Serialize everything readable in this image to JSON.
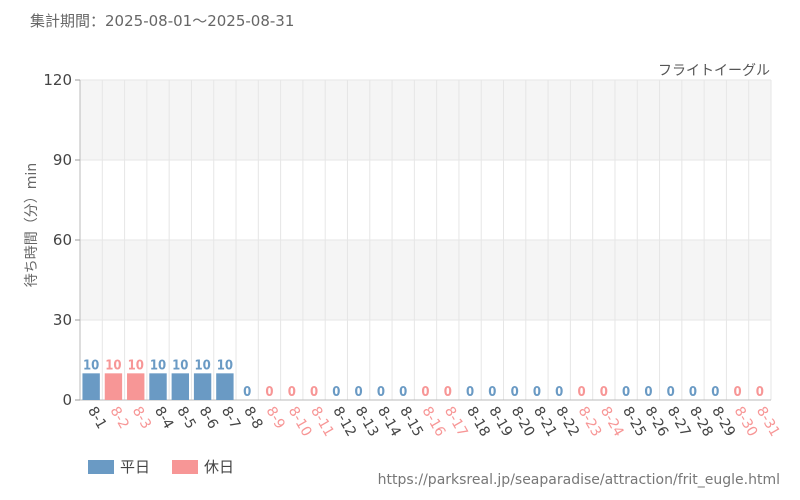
{
  "header": {
    "period_label": "集計期間：",
    "period_range": "2025-08-01～2025-08-31"
  },
  "colors": {
    "weekday": "#6a9ac4",
    "holiday": "#f79696",
    "grid": "#e6e6e6",
    "band": "#f5f5f5"
  },
  "legend": {
    "weekday_label": "平日",
    "holiday_label": "休日"
  },
  "source_url": "https://parksreal.jp/seaparadise/attraction/frit_eugle.html",
  "chart_data": {
    "type": "bar",
    "title": "フライトイーグル",
    "ylabel": "待ち時間（分）min",
    "xlabel": "",
    "ylim": [
      0,
      120
    ],
    "yticks": [
      0,
      30,
      60,
      90,
      120
    ],
    "grid": true,
    "categories": [
      "8-1",
      "8-2",
      "8-3",
      "8-4",
      "8-5",
      "8-6",
      "8-7",
      "8-8",
      "8-9",
      "8-10",
      "8-11",
      "8-12",
      "8-13",
      "8-14",
      "8-15",
      "8-16",
      "8-17",
      "8-18",
      "8-19",
      "8-20",
      "8-21",
      "8-22",
      "8-23",
      "8-24",
      "8-25",
      "8-26",
      "8-27",
      "8-28",
      "8-29",
      "8-30",
      "8-31"
    ],
    "values": [
      10,
      10,
      10,
      10,
      10,
      10,
      10,
      0,
      0,
      0,
      0,
      0,
      0,
      0,
      0,
      0,
      0,
      0,
      0,
      0,
      0,
      0,
      0,
      0,
      0,
      0,
      0,
      0,
      0,
      0,
      0
    ],
    "day_types": [
      "weekday",
      "holiday",
      "holiday",
      "weekday",
      "weekday",
      "weekday",
      "weekday",
      "weekday",
      "holiday",
      "holiday",
      "holiday",
      "weekday",
      "weekday",
      "weekday",
      "weekday",
      "holiday",
      "holiday",
      "weekday",
      "weekday",
      "weekday",
      "weekday",
      "weekday",
      "holiday",
      "holiday",
      "weekday",
      "weekday",
      "weekday",
      "weekday",
      "weekday",
      "holiday",
      "holiday"
    ]
  }
}
